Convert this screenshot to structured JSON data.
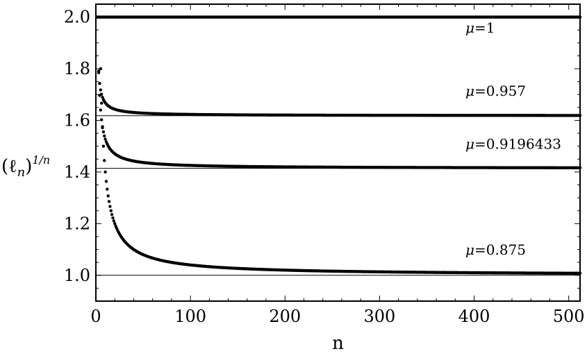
{
  "chart_data": {
    "type": "scatter",
    "title": "",
    "xlabel": "n",
    "ylabel_base": "(ℓ",
    "ylabel_sub": "n",
    "ylabel_close": ")",
    "ylabel_sup": "1/n",
    "xlim": [
      0,
      512
    ],
    "ylim": [
      0.9,
      2.05
    ],
    "x_ticks": [
      0,
      100,
      200,
      300,
      400,
      500
    ],
    "x_tick_labels": [
      "0",
      "100",
      "200",
      "300",
      "400",
      "500"
    ],
    "y_ticks": [
      1.0,
      1.2,
      1.4,
      1.6,
      1.8,
      2.0
    ],
    "y_tick_labels": [
      "1.0",
      "1.2",
      "1.4",
      "1.6",
      "1.8",
      "2.0"
    ],
    "reference_lines": [
      1.0,
      1.4142,
      1.618,
      2.0
    ],
    "grid": false,
    "legend": "none",
    "series": [
      {
        "name": "μ=1",
        "mu_symbol": "μ",
        "label_value": "=1",
        "limit": 2.0,
        "amplitude": 0.0,
        "label_anchor": [
          200,
          1.94
        ]
      },
      {
        "name": "μ=0.957",
        "mu_symbol": "μ",
        "label_value": "=0.957",
        "limit": 1.618,
        "amplitude": 0.5,
        "label_anchor": [
          200,
          1.695
        ]
      },
      {
        "name": "μ=0.9196433",
        "mu_symbol": "μ",
        "label_value": "=0.9196433",
        "limit": 1.4142,
        "amplitude": 1.13,
        "label_anchor": [
          200,
          1.49
        ]
      },
      {
        "name": "μ=0.875",
        "mu_symbol": "μ",
        "label_value": "=0.875",
        "limit": 1.0,
        "amplitude": 4.0,
        "label_anchor": [
          200,
          1.08
        ]
      }
    ],
    "point_color": "#000000",
    "frame_color": "#000000"
  }
}
